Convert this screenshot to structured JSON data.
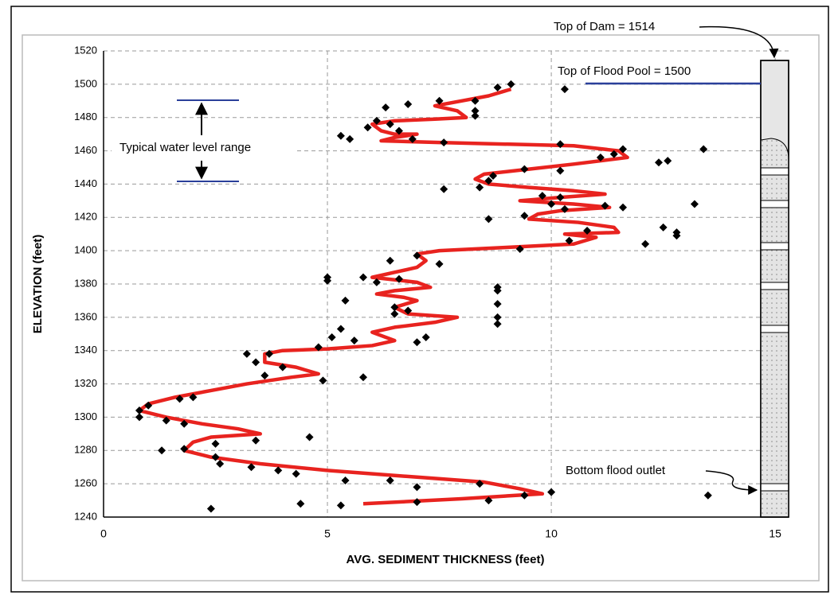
{
  "chart_data": {
    "type": "scatter",
    "x_label": "AVG. SEDIMENT THICKNESS (feet)",
    "y_label": "ELEVATION (feet)",
    "xlim": [
      0,
      15.3
    ],
    "ylim": [
      1240,
      1520
    ],
    "xticks": [
      0,
      5,
      10,
      15
    ],
    "yticks": [
      1240,
      1260,
      1280,
      1300,
      1320,
      1340,
      1360,
      1380,
      1400,
      1420,
      1440,
      1460,
      1480,
      1500,
      1520
    ],
    "grid": true,
    "annotations": [
      "Top of Dam = 1514",
      "Top of Flood Pool = 1500",
      "Typical water level range",
      "Bottom flood outlet"
    ],
    "points": {
      "color": "#000000",
      "x": [
        9.1,
        8.8,
        10.3,
        8.3,
        7.5,
        6.8,
        6.3,
        8.3,
        8.3,
        6.1,
        6.4,
        5.9,
        6.6,
        5.5,
        5.3,
        6.9,
        7.6,
        10.2,
        11.6,
        11.4,
        11.1,
        13.4,
        12.4,
        12.6,
        9.4,
        10.2,
        8.7,
        8.6,
        7.6,
        8.4,
        9.8,
        10.2,
        10.0,
        11.2,
        11.6,
        13.2,
        10.3,
        9.4,
        8.6,
        12.5,
        12.8,
        12.8,
        12.1,
        10.8,
        10.4,
        9.3,
        7.0,
        6.4,
        7.5,
        5.0,
        5.0,
        5.8,
        6.6,
        6.1,
        8.8,
        8.8,
        5.4,
        6.5,
        6.5,
        6.8,
        8.8,
        8.8,
        8.8,
        5.3,
        5.1,
        5.6,
        7.2,
        7.0,
        4.8,
        3.7,
        3.2,
        3.4,
        4.0,
        4.9,
        5.8,
        3.6,
        1.7,
        2.0,
        1.0,
        0.8,
        0.8,
        1.4,
        1.8,
        3.4,
        4.6,
        2.5,
        1.8,
        1.3,
        2.5,
        2.6,
        3.3,
        3.9,
        4.3,
        5.4,
        6.4,
        7.0,
        8.4,
        10.0,
        9.4,
        7.0,
        8.6,
        5.3,
        4.4,
        2.4,
        13.5
      ],
      "y": [
        1500,
        1498,
        1497,
        1490,
        1490,
        1488,
        1486,
        1484,
        1481,
        1478,
        1476,
        1474,
        1472,
        1467,
        1469,
        1467,
        1465,
        1464,
        1461,
        1458,
        1456,
        1461,
        1453,
        1454,
        1449,
        1448,
        1445,
        1442,
        1437,
        1438,
        1433,
        1432,
        1428,
        1427,
        1426,
        1428,
        1425,
        1421,
        1419,
        1414,
        1411,
        1409,
        1404,
        1412,
        1406,
        1401,
        1397,
        1394,
        1392,
        1384,
        1382,
        1384,
        1383,
        1381,
        1378,
        1376,
        1370,
        1366,
        1362,
        1364,
        1368,
        1360,
        1356,
        1353,
        1348,
        1346,
        1348,
        1345,
        1342,
        1338,
        1338,
        1333,
        1330,
        1322,
        1324,
        1325,
        1311,
        1312,
        1307,
        1304,
        1300,
        1298,
        1296,
        1286,
        1288,
        1284,
        1281,
        1280,
        1276,
        1272,
        1270,
        1268,
        1266,
        1262,
        1262,
        1258,
        1260,
        1255,
        1253,
        1249,
        1250,
        1247,
        1248,
        1245,
        1253
      ]
    },
    "line": {
      "color": "#e8231f",
      "x": [
        9.1,
        8.6,
        8.0,
        7.4,
        7.9,
        8.1,
        7.4,
        6.5,
        6.0,
        6.2,
        6.5,
        7.0,
        6.5,
        6.2,
        7.5,
        10.5,
        11.5,
        11.7,
        10.5,
        9.5,
        8.5,
        8.3,
        8.6,
        9.5,
        10.5,
        11.2,
        10.2,
        9.3,
        10.5,
        11.3,
        10.2,
        9.7,
        9.5,
        10.6,
        11.4,
        11.5,
        10.3,
        11.0,
        10.5,
        9.0,
        7.5,
        7.0,
        7.2,
        7.0,
        6.5,
        6.0,
        7.0,
        7.3,
        6.5,
        6.1,
        6.7,
        7.0,
        6.5,
        6.8,
        7.9,
        7.4,
        6.5,
        6.0,
        6.5,
        6.0,
        5.0,
        4.0,
        3.6,
        3.6,
        4.3,
        4.8,
        4.2,
        3.2,
        2.4,
        1.6,
        1.0,
        0.8,
        1.4,
        2.2,
        3.0,
        3.5,
        2.4,
        2.0,
        1.8,
        2.4,
        3.5,
        5.0,
        7.0,
        8.5,
        9.3,
        9.8,
        8.0,
        5.8
      ],
      "y": [
        1497,
        1493,
        1490,
        1487,
        1484,
        1480,
        1479,
        1478,
        1476,
        1472,
        1470,
        1470,
        1468,
        1466,
        1465,
        1463,
        1460,
        1456,
        1452,
        1449,
        1446,
        1443,
        1440,
        1438,
        1436,
        1434,
        1432,
        1430,
        1428,
        1426,
        1424,
        1422,
        1419,
        1417,
        1414,
        1411,
        1410,
        1408,
        1404,
        1402,
        1400,
        1398,
        1394,
        1390,
        1387,
        1384,
        1381,
        1378,
        1376,
        1374,
        1372,
        1370,
        1366,
        1362,
        1360,
        1357,
        1354,
        1351,
        1346,
        1343,
        1341,
        1340,
        1338,
        1333,
        1330,
        1326,
        1324,
        1320,
        1316,
        1312,
        1308,
        1304,
        1300,
        1296,
        1293,
        1290,
        1288,
        1285,
        1280,
        1276,
        1272,
        1268,
        1264,
        1261,
        1257,
        1254,
        1251,
        1248
      ]
    }
  }
}
